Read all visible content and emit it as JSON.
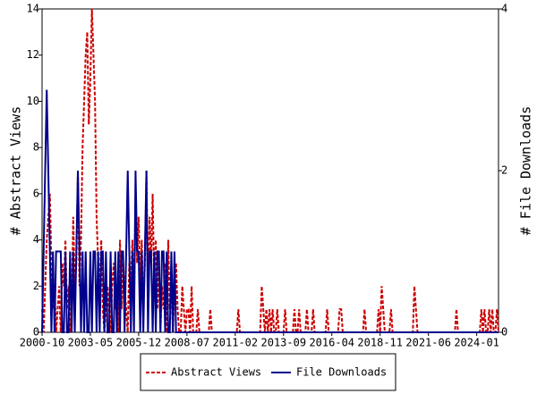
{
  "chart_data": {
    "type": "line",
    "categories": [
      "2000-10",
      null,
      null,
      null,
      null,
      null,
      null,
      null,
      null,
      null,
      null,
      null,
      null,
      null,
      null,
      null,
      null,
      null,
      null,
      null,
      null,
      null,
      null,
      null,
      null,
      null,
      null,
      null,
      null,
      null,
      null,
      "2003-05",
      null,
      null,
      null,
      null,
      null,
      null,
      null,
      null,
      null,
      null,
      null,
      null,
      null,
      null,
      null,
      null,
      null,
      null,
      null,
      null,
      null,
      null,
      null,
      null,
      null,
      null,
      null,
      null,
      null,
      null,
      "2005-12",
      null,
      null,
      null,
      null,
      null,
      null,
      null,
      null,
      null,
      null,
      null,
      null,
      null,
      null,
      null,
      null,
      null,
      null,
      null,
      null,
      null,
      null,
      null,
      null,
      null,
      null,
      null,
      null,
      null,
      null,
      "2008-07",
      null,
      null,
      null,
      null,
      null,
      null,
      null,
      null,
      null,
      null,
      null,
      null,
      null,
      null,
      null,
      null,
      null,
      null,
      null,
      null,
      null,
      null,
      null,
      null,
      null,
      null,
      null,
      null,
      null,
      null,
      "2011-02",
      null,
      null,
      null,
      null,
      null,
      null,
      null,
      null,
      null,
      null,
      null,
      null,
      null,
      null,
      null,
      null,
      null,
      null,
      null,
      null,
      null,
      null,
      null,
      null,
      null,
      null,
      null,
      null,
      null,
      null,
      "2013-09",
      null,
      null,
      null,
      null,
      null,
      null,
      null,
      null,
      null,
      null,
      null,
      null,
      null,
      null,
      null,
      null,
      null,
      null,
      null,
      null,
      null,
      null,
      null,
      null,
      null,
      null,
      null,
      null,
      null,
      null,
      "2016-04",
      null,
      null,
      null,
      null,
      null,
      null,
      null,
      null,
      null,
      null,
      null,
      null,
      null,
      null,
      null,
      null,
      null,
      null,
      null,
      null,
      null,
      null,
      null,
      null,
      null,
      null,
      null,
      null,
      null,
      null,
      "2018-11",
      null,
      null,
      null,
      null,
      null,
      null,
      null,
      null,
      null,
      null,
      null,
      null,
      null,
      null,
      null,
      null,
      null,
      null,
      null,
      null,
      null,
      null,
      null,
      null,
      null,
      null,
      null,
      null,
      null,
      null,
      "2021-06",
      null,
      null,
      null,
      null,
      null,
      null,
      null,
      null,
      null,
      null,
      null,
      null,
      null,
      null,
      null,
      null,
      null,
      null,
      null,
      null,
      null,
      null,
      null,
      null,
      null,
      null,
      null,
      null,
      null,
      null,
      "2024-01",
      null,
      null,
      null,
      null,
      null,
      null,
      null,
      null,
      null,
      null,
      null,
      null,
      null,
      null
    ],
    "ylabel": "# Abstract Views",
    "y2label": "# File Downloads",
    "ylim": [
      0,
      14
    ],
    "yticks": [
      0,
      2,
      4,
      6,
      8,
      10,
      12,
      14
    ],
    "y2lim": [
      0,
      4
    ],
    "y2ticks": [
      0,
      2,
      4
    ],
    "legend": "bottom",
    "series": [
      {
        "name": "Abstract Views",
        "color": "#cc0000",
        "dash": true,
        "values": [
          1,
          0,
          2,
          4,
          5,
          6,
          3,
          1,
          2,
          0,
          1,
          2,
          0,
          3,
          2,
          4,
          1,
          2,
          0,
          1,
          5,
          2,
          3,
          7,
          2,
          4,
          8,
          10,
          12,
          13,
          9,
          11,
          14,
          12,
          10,
          5,
          3,
          2,
          4,
          1,
          0,
          1,
          2,
          1,
          0,
          2,
          3,
          1,
          2,
          0,
          4,
          1,
          3,
          2,
          1,
          0,
          3,
          2,
          4,
          1,
          6,
          3,
          5,
          2,
          4,
          1,
          3,
          7,
          2,
          5,
          3,
          6,
          2,
          4,
          1,
          3,
          0,
          2,
          1,
          3,
          0,
          4,
          1,
          2,
          0,
          2,
          3,
          1,
          0,
          0,
          2,
          1,
          0,
          1,
          1,
          0,
          2,
          0,
          0,
          0,
          1,
          0,
          0,
          0,
          0,
          0,
          0,
          0,
          1,
          0,
          0,
          0,
          0,
          0,
          0,
          0,
          0,
          0,
          0,
          0,
          0,
          0,
          0,
          0,
          0,
          0,
          1,
          0,
          0,
          0,
          0,
          0,
          0,
          0,
          0,
          0,
          0,
          0,
          0,
          0,
          0,
          2,
          1,
          0,
          1,
          0,
          1,
          0,
          1,
          0,
          0,
          1,
          0,
          0,
          0,
          0,
          1,
          0,
          0,
          0,
          0,
          0,
          1,
          0,
          0,
          1,
          0,
          0,
          0,
          0,
          1,
          0,
          0,
          0,
          1,
          0,
          0,
          0,
          0,
          0,
          0,
          0,
          0,
          1,
          0,
          0,
          0,
          0,
          0,
          0,
          0,
          1,
          1,
          0,
          0,
          0,
          0,
          0,
          0,
          0,
          0,
          0,
          0,
          0,
          0,
          0,
          0,
          1,
          0,
          0,
          0,
          0,
          0,
          0,
          0,
          0,
          1,
          0,
          2,
          1,
          0,
          0,
          0,
          0,
          1,
          0,
          0,
          0,
          0,
          0,
          0,
          0,
          0,
          0,
          0,
          0,
          0,
          0,
          0,
          2,
          1,
          0,
          0,
          0,
          0,
          0,
          0,
          0,
          0,
          0,
          0,
          0,
          0,
          0,
          0,
          0,
          0,
          0,
          0,
          0,
          0,
          0,
          0,
          0,
          0,
          0,
          1,
          0,
          0,
          0,
          0,
          0,
          0,
          0,
          0,
          0,
          0,
          0,
          0,
          0,
          0,
          0,
          1,
          0,
          1,
          0,
          0,
          1,
          0,
          1,
          0,
          0,
          1,
          0
        ]
      },
      {
        "name": "File Downloads",
        "color": "#00008b",
        "axis": "y2",
        "values": [
          0,
          1,
          2,
          3,
          2,
          1,
          0,
          1,
          0,
          1,
          1,
          1,
          1,
          0,
          0,
          1,
          0,
          0,
          1,
          0,
          1,
          0,
          1,
          2,
          1,
          0,
          1,
          0,
          1,
          0,
          0,
          1,
          0,
          1,
          1,
          0,
          1,
          0,
          1,
          1,
          0,
          1,
          0,
          0,
          1,
          0,
          0,
          1,
          0,
          1,
          0,
          1,
          1,
          0,
          1,
          2,
          1,
          0,
          1,
          0,
          2,
          1,
          1,
          0,
          1,
          0,
          1,
          2,
          0,
          1,
          1,
          0,
          1,
          0,
          1,
          1,
          0,
          1,
          1,
          0,
          1,
          0,
          0,
          1,
          0,
          1,
          0,
          0,
          0,
          0,
          0,
          0,
          0,
          0,
          0,
          0,
          0,
          0,
          0,
          0,
          0,
          0,
          0,
          0,
          0,
          0,
          0,
          0,
          0,
          0,
          0,
          0,
          0,
          0,
          0,
          0,
          0,
          0,
          0,
          0,
          0,
          0,
          0,
          0,
          0,
          0,
          0,
          0,
          0,
          0,
          0,
          0,
          0,
          0,
          0,
          0,
          0,
          0,
          0,
          0,
          0,
          0,
          0,
          0,
          0,
          0,
          0,
          0,
          0,
          0,
          0,
          0,
          0,
          0,
          0,
          0,
          0,
          0,
          0,
          0,
          0,
          0,
          0,
          0,
          0,
          0,
          0,
          0,
          0,
          0,
          0,
          0,
          0,
          0,
          0,
          0,
          0,
          0,
          0,
          0,
          0,
          0,
          0,
          0,
          0,
          0,
          0,
          0,
          0,
          0,
          0,
          0,
          0,
          0,
          0,
          0,
          0,
          0,
          0,
          0,
          0,
          0,
          0,
          0,
          0,
          0,
          0,
          0,
          0,
          0,
          0,
          0,
          0,
          0,
          0,
          0,
          0,
          0,
          0,
          0,
          0,
          0,
          0,
          0,
          0,
          0,
          0,
          0,
          0,
          0,
          0,
          0,
          0,
          0,
          0,
          0,
          0,
          0,
          0,
          0,
          0,
          0,
          0,
          0,
          0,
          0,
          0,
          0,
          0,
          0,
          0,
          0,
          0,
          0,
          0,
          0,
          0,
          0,
          0,
          0,
          0,
          0,
          0,
          0,
          0,
          0,
          0,
          0,
          0,
          0,
          0,
          0,
          0,
          0,
          0,
          0,
          0,
          0,
          0,
          0,
          0,
          0,
          0,
          0,
          0,
          0,
          0,
          0,
          0,
          0,
          0,
          0,
          0,
          0
        ]
      }
    ]
  }
}
